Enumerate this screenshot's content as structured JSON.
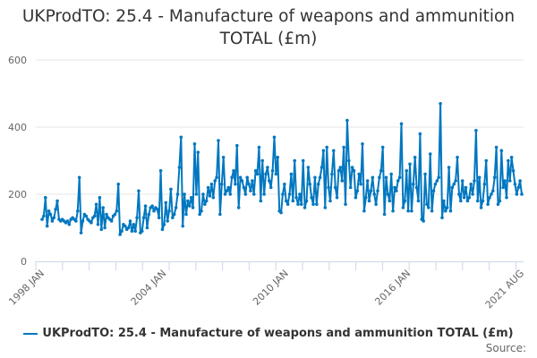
{
  "chart_data": {
    "type": "line",
    "title_line1": "UKProdTO: 25.4 - Manufacture of weapons and ammunition",
    "title_line2": "TOTAL (£m)",
    "series_name": "UKProdTO: 25.4 - Manufacture of weapons and ammunition TOTAL (£m)",
    "color": "#0077c0",
    "x_start": "1998 JAN",
    "x_end": "2021 AUG",
    "frequency": "monthly",
    "x_tick_labels": [
      "1998 JAN",
      "2004 JAN",
      "2010 JAN",
      "2016 JAN",
      "2021 AUG"
    ],
    "y_ticks": [
      0,
      200,
      400,
      600
    ],
    "ylim": [
      0,
      600
    ],
    "grid": true,
    "legend_position": "bottom",
    "values": [
      125,
      135,
      190,
      105,
      150,
      140,
      120,
      130,
      155,
      180,
      125,
      120,
      125,
      120,
      115,
      120,
      110,
      125,
      130,
      125,
      120,
      150,
      250,
      85,
      120,
      140,
      135,
      125,
      120,
      115,
      130,
      135,
      170,
      110,
      190,
      95,
      160,
      100,
      140,
      130,
      125,
      120,
      135,
      140,
      150,
      230,
      80,
      90,
      110,
      105,
      95,
      100,
      120,
      90,
      110,
      90,
      130,
      210,
      85,
      90,
      130,
      165,
      100,
      140,
      160,
      165,
      150,
      160,
      155,
      130,
      270,
      95,
      110,
      175,
      120,
      150,
      215,
      130,
      140,
      160,
      200,
      280,
      370,
      105,
      200,
      140,
      180,
      165,
      190,
      160,
      350,
      200,
      325,
      140,
      150,
      200,
      170,
      180,
      220,
      195,
      230,
      190,
      240,
      250,
      360,
      140,
      230,
      310,
      200,
      210,
      220,
      200,
      250,
      270,
      230,
      345,
      160,
      250,
      240,
      220,
      200,
      250,
      230,
      210,
      240,
      200,
      270,
      260,
      340,
      180,
      300,
      200,
      260,
      280,
      240,
      220,
      270,
      370,
      260,
      310,
      150,
      145,
      200,
      230,
      180,
      170,
      200,
      260,
      180,
      300,
      190,
      170,
      200,
      170,
      300,
      160,
      180,
      280,
      230,
      190,
      170,
      250,
      170,
      230,
      250,
      280,
      330,
      160,
      340,
      220,
      180,
      260,
      330,
      220,
      190,
      270,
      280,
      240,
      340,
      170,
      420,
      300,
      220,
      280,
      270,
      190,
      210,
      260,
      230,
      350,
      150,
      190,
      240,
      180,
      210,
      250,
      200,
      170,
      210,
      250,
      270,
      340,
      140,
      250,
      200,
      180,
      260,
      150,
      220,
      210,
      240,
      250,
      410,
      160,
      180,
      270,
      150,
      290,
      150,
      230,
      310,
      220,
      180,
      380,
      125,
      120,
      260,
      170,
      160,
      320,
      150,
      210,
      230,
      240,
      250,
      470,
      130,
      180,
      150,
      160,
      280,
      150,
      220,
      230,
      240,
      310,
      200,
      180,
      240,
      190,
      220,
      180,
      190,
      230,
      200,
      240,
      390,
      180,
      250,
      160,
      180,
      230,
      300,
      170,
      190,
      200,
      210,
      250,
      340,
      170,
      180,
      330,
      220,
      240,
      190,
      300,
      240,
      310,
      270,
      230,
      200,
      220,
      240,
      200
    ]
  },
  "source_label": "Source:"
}
